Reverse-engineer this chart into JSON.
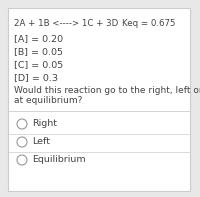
{
  "reaction_left": "2A + 1B <----> 1C + 3D",
  "keq_label": "Keq = 0.675",
  "concentrations": [
    "[A] = 0.20",
    "[B] = 0.05",
    "[C] = 0.05",
    "[D] = 0.3"
  ],
  "question_line1": "Would this reaction go to the right, left or is it",
  "question_line2": "at equilibrium?",
  "options": [
    "Right",
    "Left",
    "Equilibrium"
  ],
  "bg_color": "#e8e8e8",
  "panel_color": "#ffffff",
  "text_color": "#444444",
  "divider_color": "#cccccc",
  "reaction_fontsize": 6.2,
  "conc_fontsize": 6.8,
  "question_fontsize": 6.5,
  "option_fontsize": 6.8,
  "keq_fontsize": 6.2
}
